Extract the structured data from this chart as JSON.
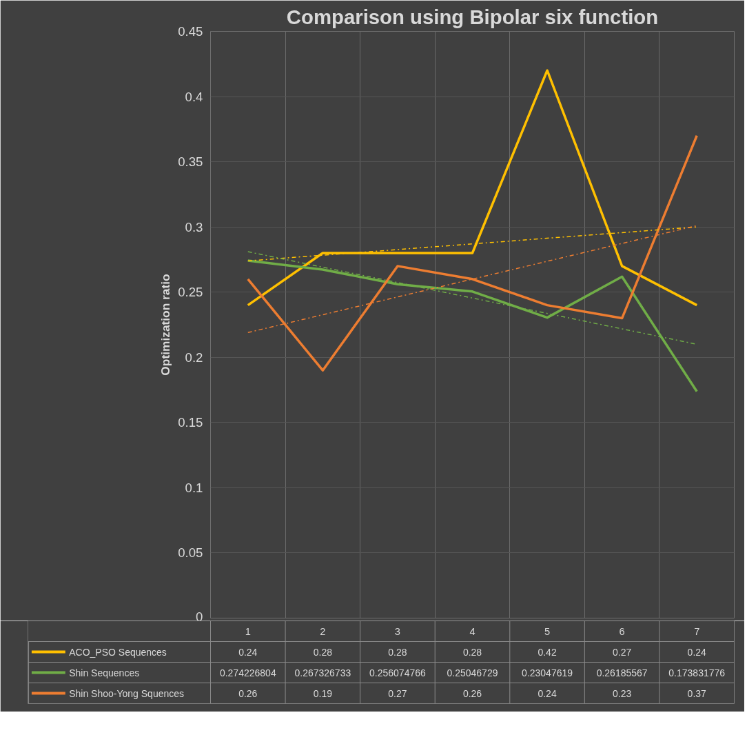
{
  "chart_data": {
    "type": "line",
    "title": "Comparison using Bipolar six function",
    "ylabel": "Optimization ratio",
    "categories": [
      "1",
      "2",
      "3",
      "4",
      "5",
      "6",
      "7"
    ],
    "series": [
      {
        "name": "ACO_PSO Sequences",
        "color": "#ffc000",
        "values": [
          0.24,
          0.28,
          0.28,
          0.28,
          0.42,
          0.27,
          0.24
        ],
        "value_labels": [
          "0.24",
          "0.28",
          "0.28",
          "0.28",
          "0.42",
          "0.27",
          "0.24"
        ]
      },
      {
        "name": "Shin Sequences",
        "color": "#70ad47",
        "values": [
          0.274226804,
          0.267326733,
          0.256074766,
          0.25046729,
          0.23047619,
          0.26185567,
          0.173831776
        ],
        "value_labels": [
          "0.274226804",
          "0.267326733",
          "0.256074766",
          "0.25046729",
          "0.23047619",
          "0.26185567",
          "0.173831776"
        ]
      },
      {
        "name": "Shin Shoo-Yong Squences",
        "color": "#ed7d31",
        "values": [
          0.26,
          0.19,
          0.27,
          0.26,
          0.24,
          0.23,
          0.37
        ],
        "value_labels": [
          "0.26",
          "0.19",
          "0.27",
          "0.26",
          "0.24",
          "0.23",
          "0.37"
        ]
      },
      {
        "type": "line",
        "color": "#ffc000",
        "x": [
          "1",
          "7"
        ],
        "values": [
          0.274,
          0.3
        ],
        "line_style": "dashed"
      },
      {
        "type": "line",
        "color": "#70ad47",
        "x": [
          "1",
          "7"
        ],
        "values": [
          0.281,
          0.21
        ],
        "line_style": "dashed"
      },
      {
        "type": "line",
        "color": "#ed7d31",
        "x": [
          "1",
          "7"
        ],
        "values": [
          0.219,
          0.301
        ],
        "line_style": "dashed"
      }
    ],
    "ylim": [
      0,
      0.45
    ],
    "yticks": [
      0,
      0.05,
      0.1,
      0.15,
      0.2,
      0.25,
      0.3,
      0.35,
      0.4,
      0.45
    ],
    "grid": true,
    "legend": "bottom",
    "marker": "none",
    "line_style": "solid"
  }
}
